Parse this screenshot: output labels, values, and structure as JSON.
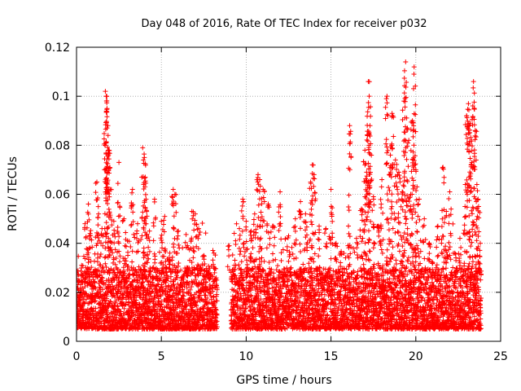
{
  "chart_data": {
    "type": "scatter",
    "title": "Day 048 of 2016, Rate Of TEC Index for receiver p032",
    "xlabel": "GPS time / hours",
    "ylabel": "ROTI / TECUs",
    "xlim": [
      0,
      25
    ],
    "ylim": [
      0,
      0.12
    ],
    "xticks": [
      0,
      5,
      10,
      15,
      20,
      25
    ],
    "xtick_labels": [
      "0",
      "5",
      "10",
      "15",
      "20",
      "25"
    ],
    "yticks": [
      0,
      0.02,
      0.04,
      0.06,
      0.08,
      0.1,
      0.12
    ],
    "ytick_labels": [
      "0",
      "0.02",
      "0.04",
      "0.06",
      "0.08",
      "0.1",
      "0.12"
    ],
    "grid": true,
    "marker": "+",
    "color": "#ff0000",
    "data_gap_hours": [
      8.3,
      9.1
    ],
    "series": [
      {
        "name": "ROTI",
        "points": [
          [
            0.1,
            0.015
          ],
          [
            0.3,
            0.031
          ],
          [
            0.5,
            0.048
          ],
          [
            0.7,
            0.056
          ],
          [
            0.8,
            0.044
          ],
          [
            1.0,
            0.022
          ],
          [
            1.2,
            0.065
          ],
          [
            1.3,
            0.052
          ],
          [
            1.5,
            0.046
          ],
          [
            1.7,
            0.102
          ],
          [
            1.75,
            0.1
          ],
          [
            1.8,
            0.095
          ],
          [
            1.85,
            0.088
          ],
          [
            1.9,
            0.078
          ],
          [
            2.0,
            0.062
          ],
          [
            2.2,
            0.049
          ],
          [
            2.5,
            0.073
          ],
          [
            2.8,
            0.05
          ],
          [
            3.0,
            0.041
          ],
          [
            3.3,
            0.062
          ],
          [
            3.6,
            0.048
          ],
          [
            3.9,
            0.079
          ],
          [
            4.0,
            0.075
          ],
          [
            4.05,
            0.067
          ],
          [
            4.1,
            0.058
          ],
          [
            4.3,
            0.045
          ],
          [
            4.6,
            0.058
          ],
          [
            5.0,
            0.049
          ],
          [
            5.2,
            0.051
          ],
          [
            5.5,
            0.036
          ],
          [
            5.7,
            0.062
          ],
          [
            5.8,
            0.06
          ],
          [
            6.0,
            0.045
          ],
          [
            6.5,
            0.03
          ],
          [
            6.8,
            0.053
          ],
          [
            7.0,
            0.052
          ],
          [
            7.2,
            0.046
          ],
          [
            7.5,
            0.035
          ],
          [
            7.8,
            0.028
          ],
          [
            8.1,
            0.036
          ],
          [
            9.0,
            0.039
          ],
          [
            9.3,
            0.031
          ],
          [
            9.6,
            0.046
          ],
          [
            9.8,
            0.058
          ],
          [
            10.0,
            0.049
          ],
          [
            10.3,
            0.045
          ],
          [
            10.5,
            0.052
          ],
          [
            10.7,
            0.068
          ],
          [
            10.8,
            0.066
          ],
          [
            11.0,
            0.062
          ],
          [
            11.3,
            0.056
          ],
          [
            11.6,
            0.047
          ],
          [
            12.0,
            0.061
          ],
          [
            12.5,
            0.043
          ],
          [
            12.9,
            0.05
          ],
          [
            13.2,
            0.057
          ],
          [
            13.5,
            0.052
          ],
          [
            13.8,
            0.065
          ],
          [
            13.9,
            0.072
          ],
          [
            14.0,
            0.068
          ],
          [
            14.3,
            0.047
          ],
          [
            14.7,
            0.046
          ],
          [
            15.0,
            0.062
          ],
          [
            15.3,
            0.04
          ],
          [
            15.6,
            0.036
          ],
          [
            16.0,
            0.039
          ],
          [
            16.1,
            0.088
          ],
          [
            16.5,
            0.042
          ],
          [
            16.8,
            0.054
          ],
          [
            17.0,
            0.078
          ],
          [
            17.1,
            0.069
          ],
          [
            17.2,
            0.106
          ],
          [
            17.25,
            0.1
          ],
          [
            17.3,
            0.088
          ],
          [
            17.5,
            0.059
          ],
          [
            17.8,
            0.047
          ],
          [
            18.0,
            0.066
          ],
          [
            18.3,
            0.1
          ],
          [
            18.5,
            0.076
          ],
          [
            18.6,
            0.093
          ],
          [
            18.8,
            0.074
          ],
          [
            19.0,
            0.069
          ],
          [
            19.2,
            0.061
          ],
          [
            19.3,
            0.098
          ],
          [
            19.4,
            0.114
          ],
          [
            19.5,
            0.087
          ],
          [
            19.7,
            0.06
          ],
          [
            19.8,
            0.09
          ],
          [
            19.9,
            0.112
          ],
          [
            20.0,
            0.07
          ],
          [
            20.2,
            0.058
          ],
          [
            20.5,
            0.05
          ],
          [
            20.8,
            0.04
          ],
          [
            21.0,
            0.032
          ],
          [
            21.3,
            0.047
          ],
          [
            21.6,
            0.071
          ],
          [
            21.8,
            0.053
          ],
          [
            22.0,
            0.061
          ],
          [
            22.3,
            0.036
          ],
          [
            22.6,
            0.042
          ],
          [
            22.9,
            0.055
          ],
          [
            23.0,
            0.092
          ],
          [
            23.1,
            0.097
          ],
          [
            23.2,
            0.089
          ],
          [
            23.3,
            0.073
          ],
          [
            23.4,
            0.106
          ],
          [
            23.5,
            0.086
          ],
          [
            23.6,
            0.064
          ],
          [
            23.7,
            0.055
          ],
          [
            23.8,
            0.04
          ]
        ],
        "baseline_range": [
          0.005,
          0.03
        ]
      }
    ]
  }
}
